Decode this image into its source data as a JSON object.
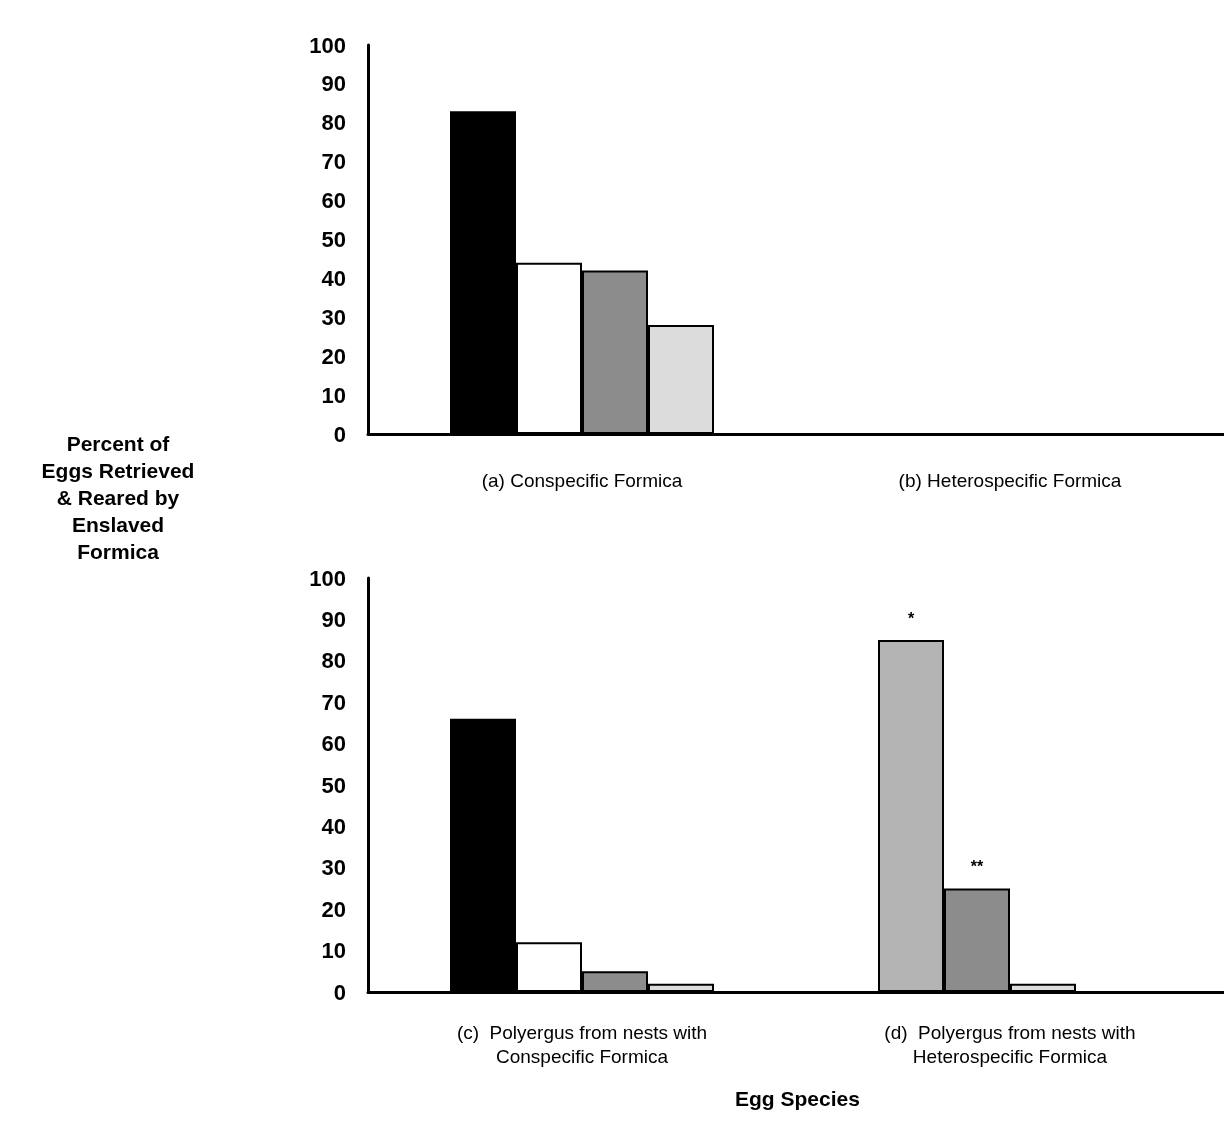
{
  "chart_data": [
    {
      "type": "bar",
      "ylabel": "Percent of\nEggs Retrieved\n& Reared by\nEnslaved\nFormica",
      "categories": [
        "(a) Conspecific Formica",
        "(b) Heterospecific Formica"
      ],
      "series": [
        {
          "colors": [
            "#000000",
            "#000000"
          ],
          "values": [
            83,
            null
          ]
        },
        {
          "colors": [
            "#ffffff",
            "#ffffff"
          ],
          "values": [
            44,
            null
          ]
        },
        {
          "colors": [
            "#8c8c8c",
            "#8c8c8c"
          ],
          "values": [
            42,
            null
          ]
        },
        {
          "colors": [
            "#dcdcdc",
            "#dcdcdc"
          ],
          "values": [
            28,
            null
          ]
        }
      ],
      "ylim": [
        0,
        100
      ],
      "yticks": [
        0,
        10,
        20,
        30,
        40,
        50,
        60,
        70,
        80,
        90,
        100
      ],
      "grid": false
    },
    {
      "type": "bar",
      "xlabel": "Egg Species",
      "categories": [
        "(c)  Polyergus from nests with\nConspecific Formica",
        "(d)  Polyergus from nests with\nHeterospecific Formica"
      ],
      "series": [
        {
          "colors": [
            "#000000",
            "#b4b4b4"
          ],
          "values": [
            66,
            85
          ],
          "value_labels": [
            null,
            "*"
          ]
        },
        {
          "colors": [
            "#ffffff",
            "#8c8c8c"
          ],
          "values": [
            12,
            25
          ],
          "value_labels": [
            null,
            "**"
          ]
        },
        {
          "colors": [
            "#8c8c8c",
            "#dcdcdc"
          ],
          "values": [
            5,
            2
          ]
        },
        {
          "colors": [
            "#dcdcdc",
            "#dcdcdc"
          ],
          "values": [
            2,
            null
          ]
        }
      ],
      "ylim": [
        0,
        100
      ],
      "yticks": [
        0,
        10,
        20,
        30,
        40,
        50,
        60,
        70,
        80,
        90,
        100
      ],
      "grid": false
    }
  ]
}
